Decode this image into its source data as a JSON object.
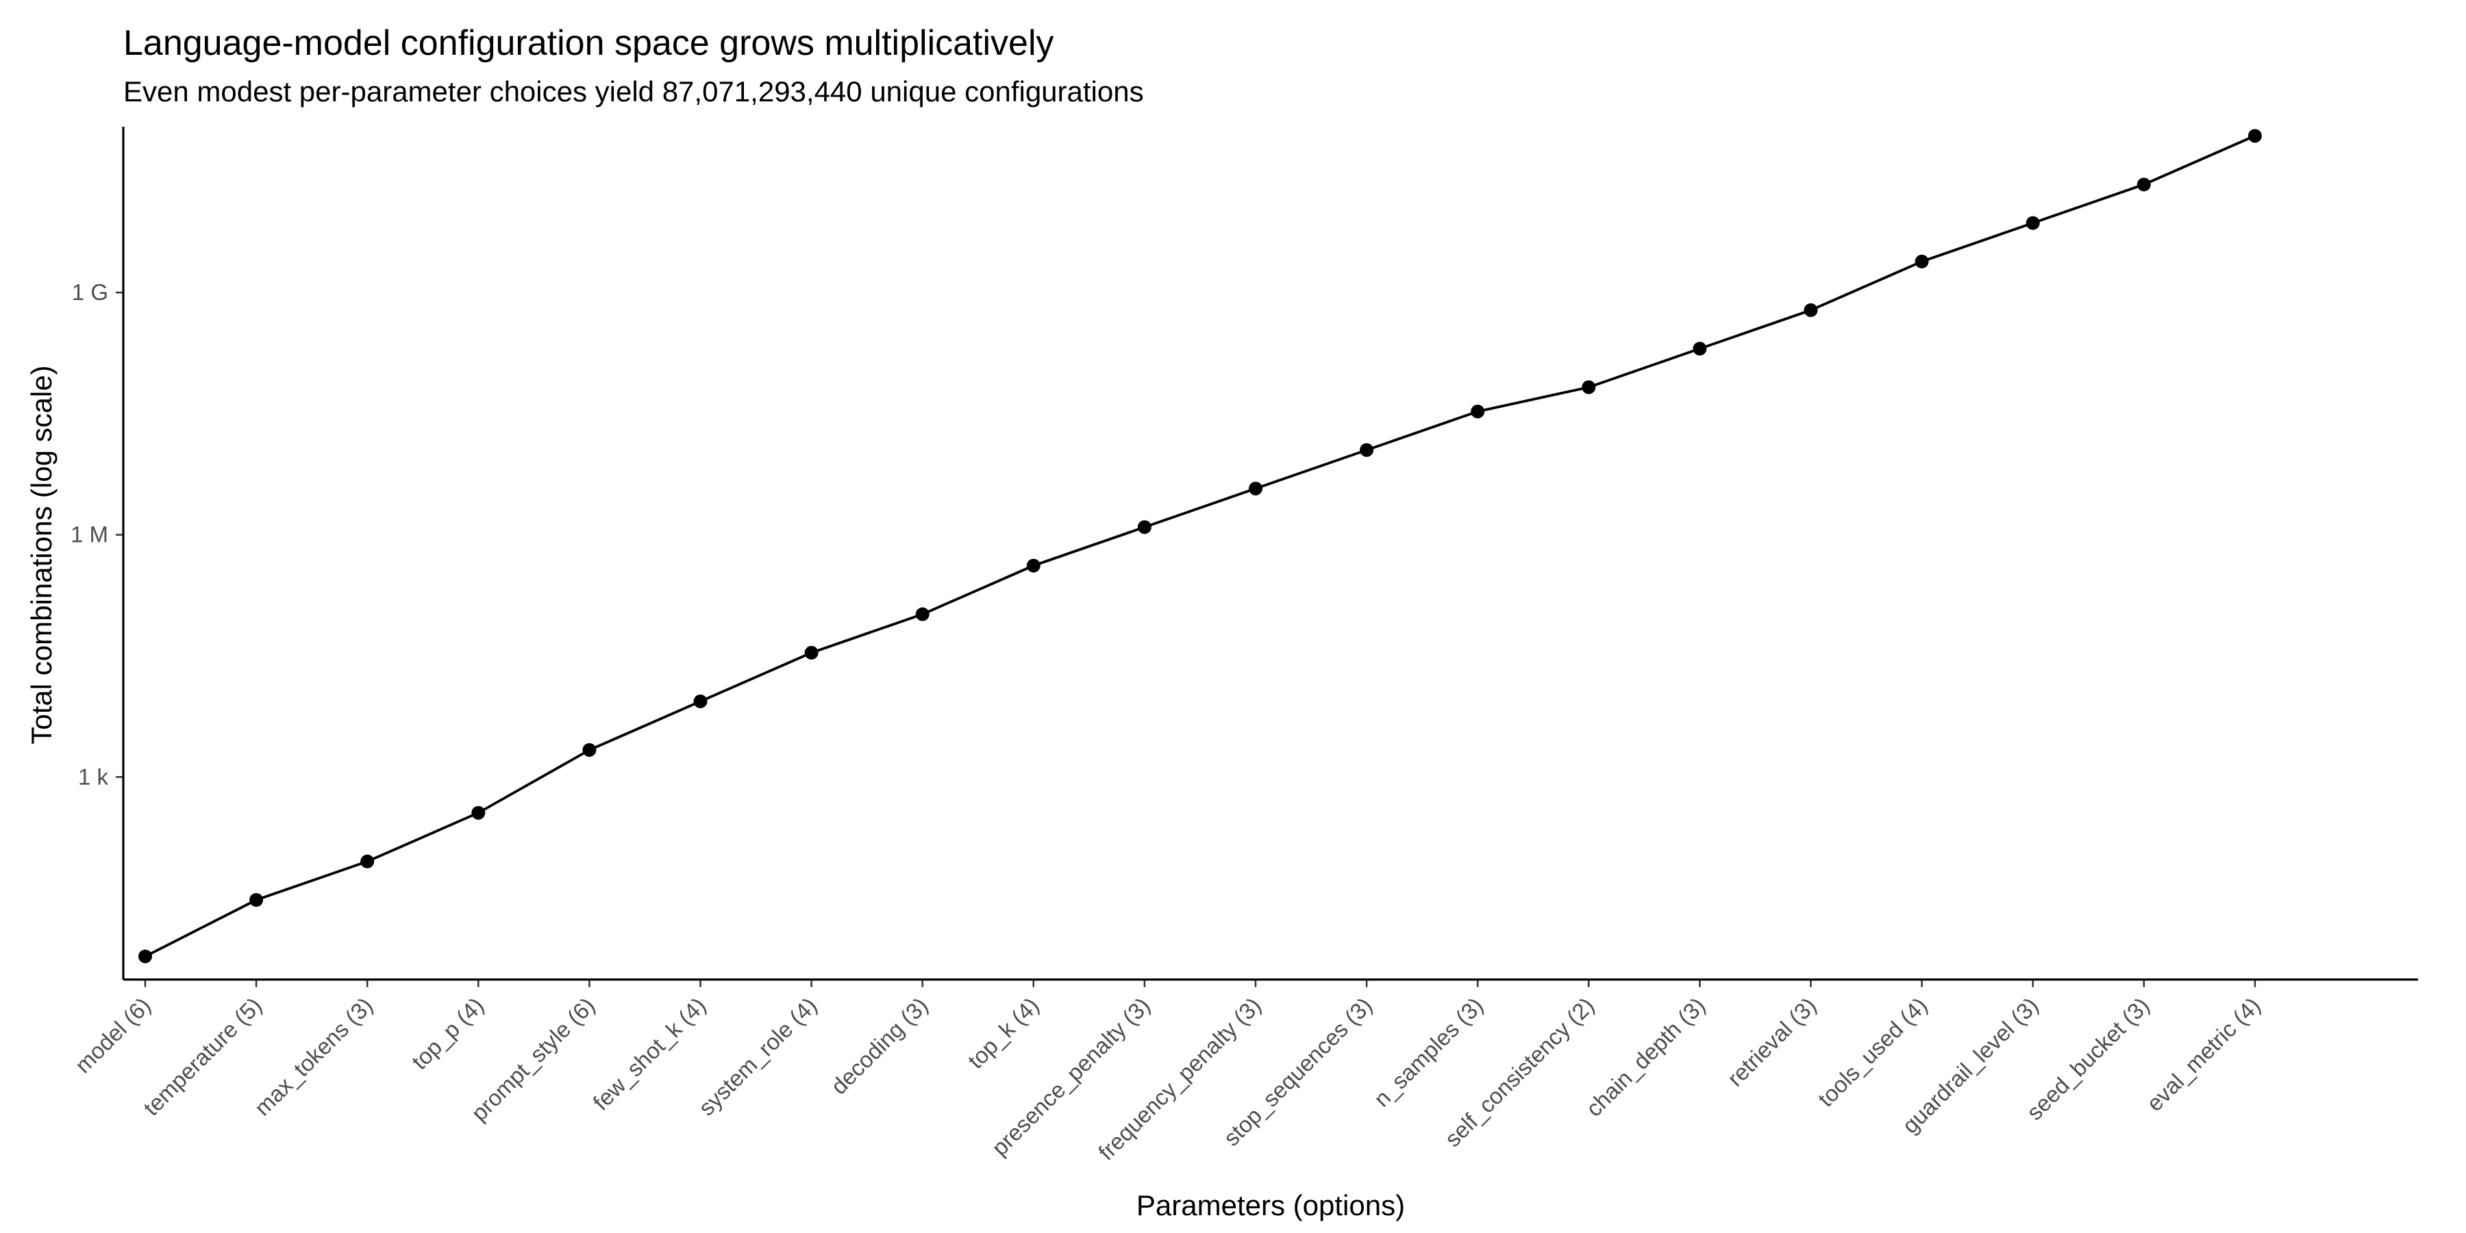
{
  "chart_data": {
    "type": "line",
    "title": "Language-model configuration space grows multiplicatively",
    "subtitle": "Even modest per-parameter choices yield 87,071,293,440 unique configurations",
    "xlabel": "Parameters (options)",
    "ylabel": "Total combinations (log scale)",
    "y_scale": "log10",
    "ylim": [
      3.1,
      113000000000
    ],
    "y_ticks": [
      {
        "value": 1000,
        "label": "1 k"
      },
      {
        "value": 1000000,
        "label": "1 M"
      },
      {
        "value": 1000000000,
        "label": "1 G"
      }
    ],
    "grid": false,
    "categories": [
      "model (6)",
      "temperature (5)",
      "max_tokens (3)",
      "top_p (4)",
      "prompt_style (6)",
      "few_shot_k (4)",
      "system_role (4)",
      "decoding (3)",
      "top_k (4)",
      "presence_penalty (3)",
      "frequency_penalty (3)",
      "stop_sequences (3)",
      "n_samples (3)",
      "self_consistency (2)",
      "chain_depth (3)",
      "retrieval (3)",
      "tools_used (4)",
      "guardrail_level (3)",
      "seed_bucket (3)",
      "eval_metric (4)"
    ],
    "values": [
      6,
      30,
      90,
      360,
      2160,
      8640,
      34560,
      103680,
      414720,
      1244160,
      3732480,
      11197440,
      33592320,
      67184640,
      201553920,
      604661760,
      2418647040,
      7255941120,
      21767823360,
      87071293440
    ],
    "colors": {
      "line": "#000000",
      "points": "#000000"
    }
  }
}
